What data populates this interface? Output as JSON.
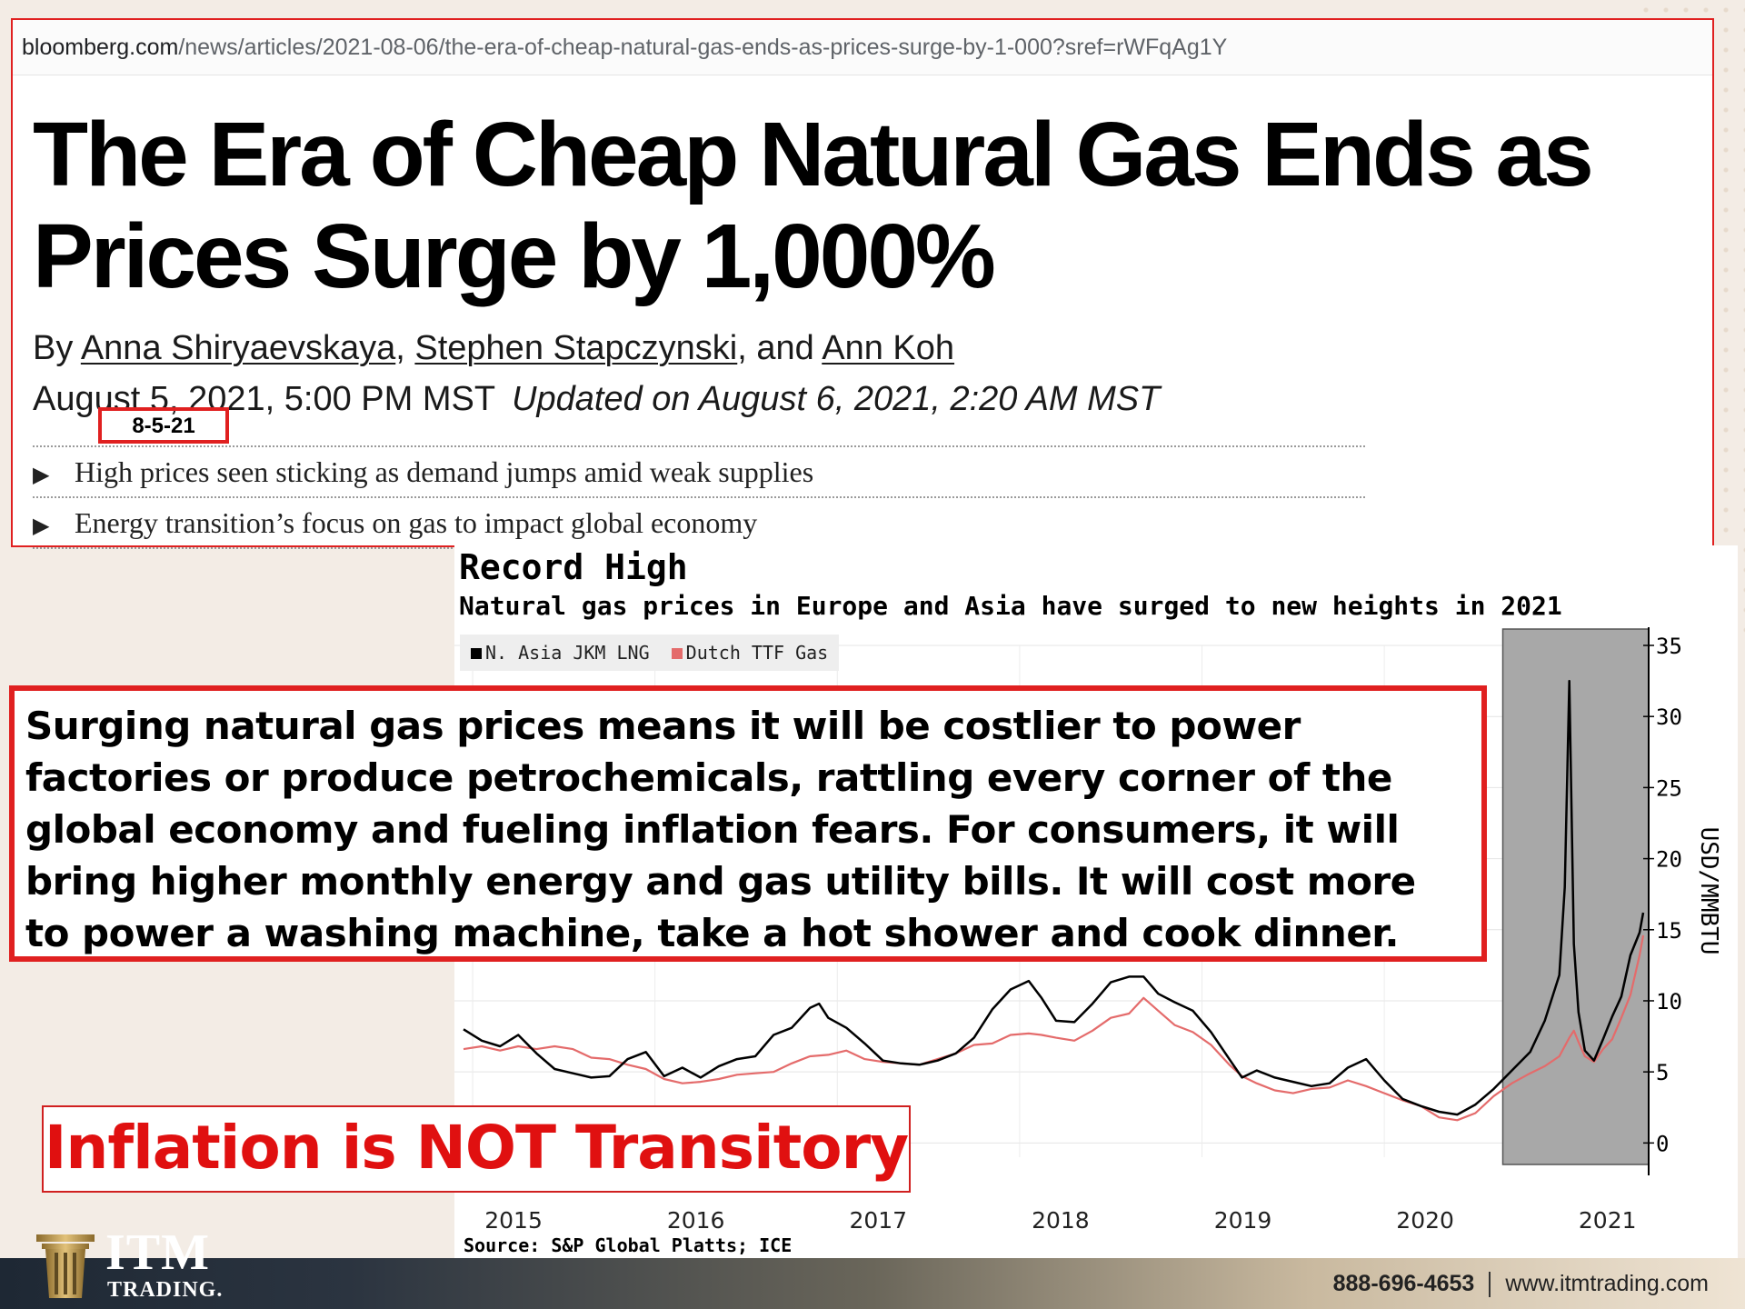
{
  "browser": {
    "url_host": "bloomberg.com",
    "url_path": "/news/articles/2021-08-06/the-era-of-cheap-natural-gas-ends-as-prices-surge-by-1-000?sref=rWFqAg1Y"
  },
  "article": {
    "headline": "The Era of Cheap Natural Gas Ends as Prices Surge by 1,000%",
    "by_prefix": "By",
    "authors": [
      "Anna Shiryaevskaya",
      "Stephen Stapczynski",
      "Ann Koh"
    ],
    "author_sep_1": ",",
    "author_sep_2": ", and",
    "published": "August 5, 2021, 5:00 PM MST",
    "updated": "Updated on August 6, 2021, 2:20 AM MST",
    "date_tag": "8-5-21",
    "bullets": [
      "High prices seen sticking as demand jumps amid weak supplies",
      "Energy transition’s focus on gas to impact global economy"
    ],
    "bullet_icon": "play-arrow-icon"
  },
  "chart": {
    "title": "Record High",
    "subtitle": "Natural gas prices in Europe and Asia have surged to new heights in 2021",
    "source": "Source: S&P Global Platts; ICE"
  },
  "chart_data": {
    "type": "line",
    "ylabel": "USD/MMBTU",
    "ylim": [
      -1,
      35
    ],
    "xlim": [
      2014.9,
      2021.45
    ],
    "yticks": [
      0,
      5,
      10,
      15,
      20,
      25,
      30,
      35
    ],
    "xticks": [
      2015,
      2016,
      2017,
      2018,
      2019,
      2020,
      2021
    ],
    "highlight_region": [
      2020.65,
      2021.45
    ],
    "series": [
      {
        "name": "N. Asia JKM LNG",
        "color": "#000000",
        "points": [
          [
            2014.95,
            8
          ],
          [
            2015.05,
            7.2
          ],
          [
            2015.15,
            6.8
          ],
          [
            2015.25,
            7.6
          ],
          [
            2015.35,
            6.3
          ],
          [
            2015.45,
            5.2
          ],
          [
            2015.55,
            4.9
          ],
          [
            2015.65,
            4.6
          ],
          [
            2015.75,
            4.7
          ],
          [
            2015.85,
            5.9
          ],
          [
            2015.95,
            6.4
          ],
          [
            2016.05,
            4.7
          ],
          [
            2016.15,
            5.3
          ],
          [
            2016.25,
            4.6
          ],
          [
            2016.35,
            5.4
          ],
          [
            2016.45,
            5.9
          ],
          [
            2016.55,
            6.1
          ],
          [
            2016.65,
            7.6
          ],
          [
            2016.75,
            8.1
          ],
          [
            2016.85,
            9.5
          ],
          [
            2016.9,
            9.8
          ],
          [
            2016.95,
            8.8
          ],
          [
            2017.05,
            8.1
          ],
          [
            2017.15,
            7.0
          ],
          [
            2017.25,
            5.8
          ],
          [
            2017.35,
            5.6
          ],
          [
            2017.45,
            5.5
          ],
          [
            2017.55,
            5.8
          ],
          [
            2017.65,
            6.3
          ],
          [
            2017.75,
            7.4
          ],
          [
            2017.85,
            9.4
          ],
          [
            2017.95,
            10.8
          ],
          [
            2018.05,
            11.4
          ],
          [
            2018.12,
            10.2
          ],
          [
            2018.2,
            8.6
          ],
          [
            2018.3,
            8.5
          ],
          [
            2018.4,
            9.8
          ],
          [
            2018.5,
            11.3
          ],
          [
            2018.6,
            11.7
          ],
          [
            2018.68,
            11.7
          ],
          [
            2018.76,
            10.5
          ],
          [
            2018.85,
            9.9
          ],
          [
            2018.95,
            9.3
          ],
          [
            2019.05,
            7.8
          ],
          [
            2019.15,
            5.9
          ],
          [
            2019.22,
            4.6
          ],
          [
            2019.3,
            5.1
          ],
          [
            2019.4,
            4.6
          ],
          [
            2019.5,
            4.3
          ],
          [
            2019.6,
            4.0
          ],
          [
            2019.7,
            4.2
          ],
          [
            2019.8,
            5.3
          ],
          [
            2019.9,
            5.9
          ],
          [
            2020.0,
            4.4
          ],
          [
            2020.1,
            3.1
          ],
          [
            2020.2,
            2.6
          ],
          [
            2020.3,
            2.2
          ],
          [
            2020.4,
            2.0
          ],
          [
            2020.5,
            2.7
          ],
          [
            2020.6,
            3.8
          ],
          [
            2020.7,
            5.1
          ],
          [
            2020.8,
            6.4
          ],
          [
            2020.88,
            8.6
          ],
          [
            2020.96,
            11.8
          ],
          [
            2020.99,
            18
          ],
          [
            2021.015,
            32.5
          ],
          [
            2021.04,
            14
          ],
          [
            2021.065,
            9.2
          ],
          [
            2021.1,
            6.5
          ],
          [
            2021.15,
            5.8
          ],
          [
            2021.2,
            7.3
          ],
          [
            2021.25,
            8.9
          ],
          [
            2021.3,
            10.3
          ],
          [
            2021.35,
            13.2
          ],
          [
            2021.4,
            14.8
          ],
          [
            2021.42,
            16.2
          ]
        ]
      },
      {
        "name": "Dutch TTF Gas",
        "color": "#e46b6b",
        "points": [
          [
            2014.95,
            6.6
          ],
          [
            2015.05,
            6.8
          ],
          [
            2015.15,
            6.5
          ],
          [
            2015.25,
            6.8
          ],
          [
            2015.35,
            6.6
          ],
          [
            2015.45,
            6.8
          ],
          [
            2015.55,
            6.6
          ],
          [
            2015.65,
            6.0
          ],
          [
            2015.75,
            5.9
          ],
          [
            2015.85,
            5.5
          ],
          [
            2015.95,
            5.2
          ],
          [
            2016.05,
            4.5
          ],
          [
            2016.15,
            4.2
          ],
          [
            2016.25,
            4.3
          ],
          [
            2016.35,
            4.5
          ],
          [
            2016.45,
            4.8
          ],
          [
            2016.55,
            4.9
          ],
          [
            2016.65,
            5.0
          ],
          [
            2016.75,
            5.6
          ],
          [
            2016.85,
            6.1
          ],
          [
            2016.95,
            6.2
          ],
          [
            2017.05,
            6.5
          ],
          [
            2017.15,
            5.9
          ],
          [
            2017.25,
            5.7
          ],
          [
            2017.35,
            5.6
          ],
          [
            2017.45,
            5.5
          ],
          [
            2017.55,
            5.9
          ],
          [
            2017.65,
            6.3
          ],
          [
            2017.75,
            6.9
          ],
          [
            2017.85,
            7.0
          ],
          [
            2017.95,
            7.6
          ],
          [
            2018.05,
            7.7
          ],
          [
            2018.12,
            7.6
          ],
          [
            2018.2,
            7.4
          ],
          [
            2018.3,
            7.2
          ],
          [
            2018.4,
            7.9
          ],
          [
            2018.5,
            8.8
          ],
          [
            2018.6,
            9.1
          ],
          [
            2018.68,
            10.2
          ],
          [
            2018.76,
            9.3
          ],
          [
            2018.85,
            8.3
          ],
          [
            2018.95,
            7.8
          ],
          [
            2019.05,
            6.9
          ],
          [
            2019.15,
            5.5
          ],
          [
            2019.22,
            4.7
          ],
          [
            2019.3,
            4.2
          ],
          [
            2019.4,
            3.7
          ],
          [
            2019.5,
            3.5
          ],
          [
            2019.6,
            3.8
          ],
          [
            2019.7,
            3.9
          ],
          [
            2019.8,
            4.4
          ],
          [
            2019.9,
            4.0
          ],
          [
            2020.0,
            3.5
          ],
          [
            2020.1,
            3.0
          ],
          [
            2020.2,
            2.6
          ],
          [
            2020.3,
            1.8
          ],
          [
            2020.4,
            1.6
          ],
          [
            2020.5,
            2.1
          ],
          [
            2020.6,
            3.3
          ],
          [
            2020.7,
            4.2
          ],
          [
            2020.8,
            4.9
          ],
          [
            2020.88,
            5.4
          ],
          [
            2020.96,
            6.1
          ],
          [
            2021.015,
            7.4
          ],
          [
            2021.04,
            7.9
          ],
          [
            2021.065,
            7.1
          ],
          [
            2021.1,
            6.1
          ],
          [
            2021.15,
            5.7
          ],
          [
            2021.2,
            6.6
          ],
          [
            2021.25,
            7.3
          ],
          [
            2021.3,
            8.8
          ],
          [
            2021.35,
            10.4
          ],
          [
            2021.4,
            13.2
          ],
          [
            2021.42,
            14.6
          ]
        ]
      }
    ]
  },
  "callout": {
    "text": "Surging natural gas prices means it will be costlier to power factories or produce petrochemicals, rattling every corner of the global economy and fueling inflation fears. For consumers, it will bring higher monthly energy and gas utility bills. It will cost more to power a washing machine, take a hot shower and cook dinner."
  },
  "banner": {
    "text": "Inflation is NOT Transitory"
  },
  "footer": {
    "brand": "ITM",
    "brand_sub": "TRADING.",
    "phone": "888-696-4653",
    "website": "www.itmtrading.com"
  },
  "colors": {
    "accent_red": "#e02020",
    "jkm": "#000000",
    "ttf": "#e46b6b",
    "highlight": "#a8a8a8"
  }
}
